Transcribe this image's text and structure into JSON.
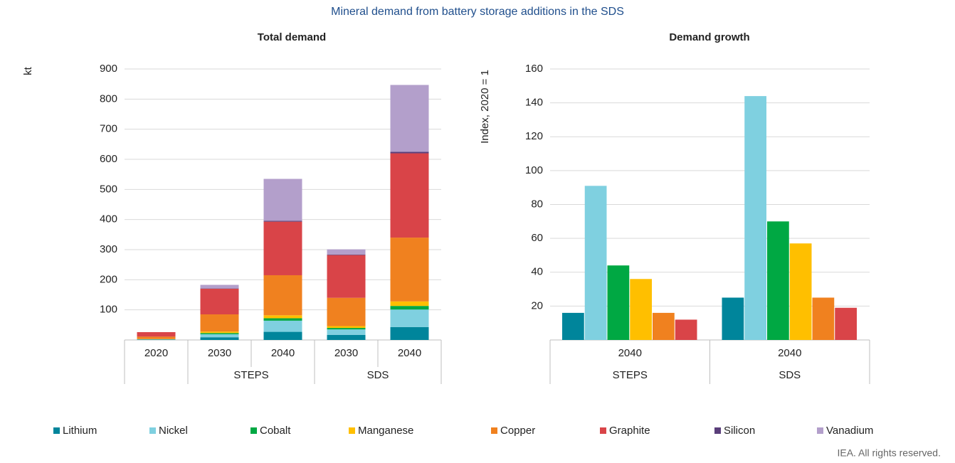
{
  "title": "Mineral demand from battery storage additions in the SDS",
  "footer": "IEA. All rights reserved.",
  "chart_data": [
    {
      "type": "stacked_bar",
      "title": "Total demand",
      "y_label": "kt",
      "categories": [
        "2020",
        "2030",
        "2040",
        "2030",
        "2040"
      ],
      "groups": [
        null,
        "STEPS",
        "STEPS",
        "SDS",
        "SDS"
      ],
      "ylim": [
        0,
        900
      ],
      "yticks": [
        100,
        200,
        300,
        400,
        500,
        600,
        700,
        800,
        900
      ],
      "grid": true,
      "series": [
        {
          "name": "Lithium",
          "color": "#00859b",
          "values": [
            1,
            9,
            27,
            17,
            43
          ]
        },
        {
          "name": "Nickel",
          "color": "#7fd0e0",
          "values": [
            1,
            10,
            37,
            18,
            58
          ]
        },
        {
          "name": "Cobalt",
          "color": "#00a843",
          "values": [
            0.5,
            4,
            8,
            5,
            12
          ]
        },
        {
          "name": "Manganese",
          "color": "#ffbf00",
          "values": [
            0.5,
            5,
            10,
            6,
            15
          ]
        },
        {
          "name": "Copper",
          "color": "#f0811f",
          "values": [
            8,
            57,
            133,
            94,
            212
          ]
        },
        {
          "name": "Graphite",
          "color": "#d94448",
          "values": [
            15,
            85,
            178,
            142,
            280
          ]
        },
        {
          "name": "Silicon",
          "color": "#5a3e7a",
          "values": [
            0,
            1,
            3,
            2,
            5
          ]
        },
        {
          "name": "Vanadium",
          "color": "#b39fcb",
          "values": [
            0,
            12,
            139,
            17,
            222
          ]
        }
      ]
    },
    {
      "type": "grouped_bar",
      "title": "Demand growth",
      "y_label": "Index, 2020 = 1",
      "categories": [
        "2040",
        "2040"
      ],
      "groups": [
        "STEPS",
        "SDS"
      ],
      "ylim": [
        0,
        160
      ],
      "yticks": [
        20,
        40,
        60,
        80,
        100,
        120,
        140,
        160
      ],
      "grid": true,
      "series": [
        {
          "name": "Lithium",
          "color": "#00859b",
          "values": [
            16,
            25
          ]
        },
        {
          "name": "Nickel",
          "color": "#7fd0e0",
          "values": [
            91,
            144
          ]
        },
        {
          "name": "Cobalt",
          "color": "#00a843",
          "values": [
            44,
            70
          ]
        },
        {
          "name": "Manganese",
          "color": "#ffbf00",
          "values": [
            36,
            57
          ]
        },
        {
          "name": "Copper",
          "color": "#f0811f",
          "values": [
            16,
            25
          ]
        },
        {
          "name": "Graphite",
          "color": "#d94448",
          "values": [
            12,
            19
          ]
        }
      ]
    }
  ]
}
